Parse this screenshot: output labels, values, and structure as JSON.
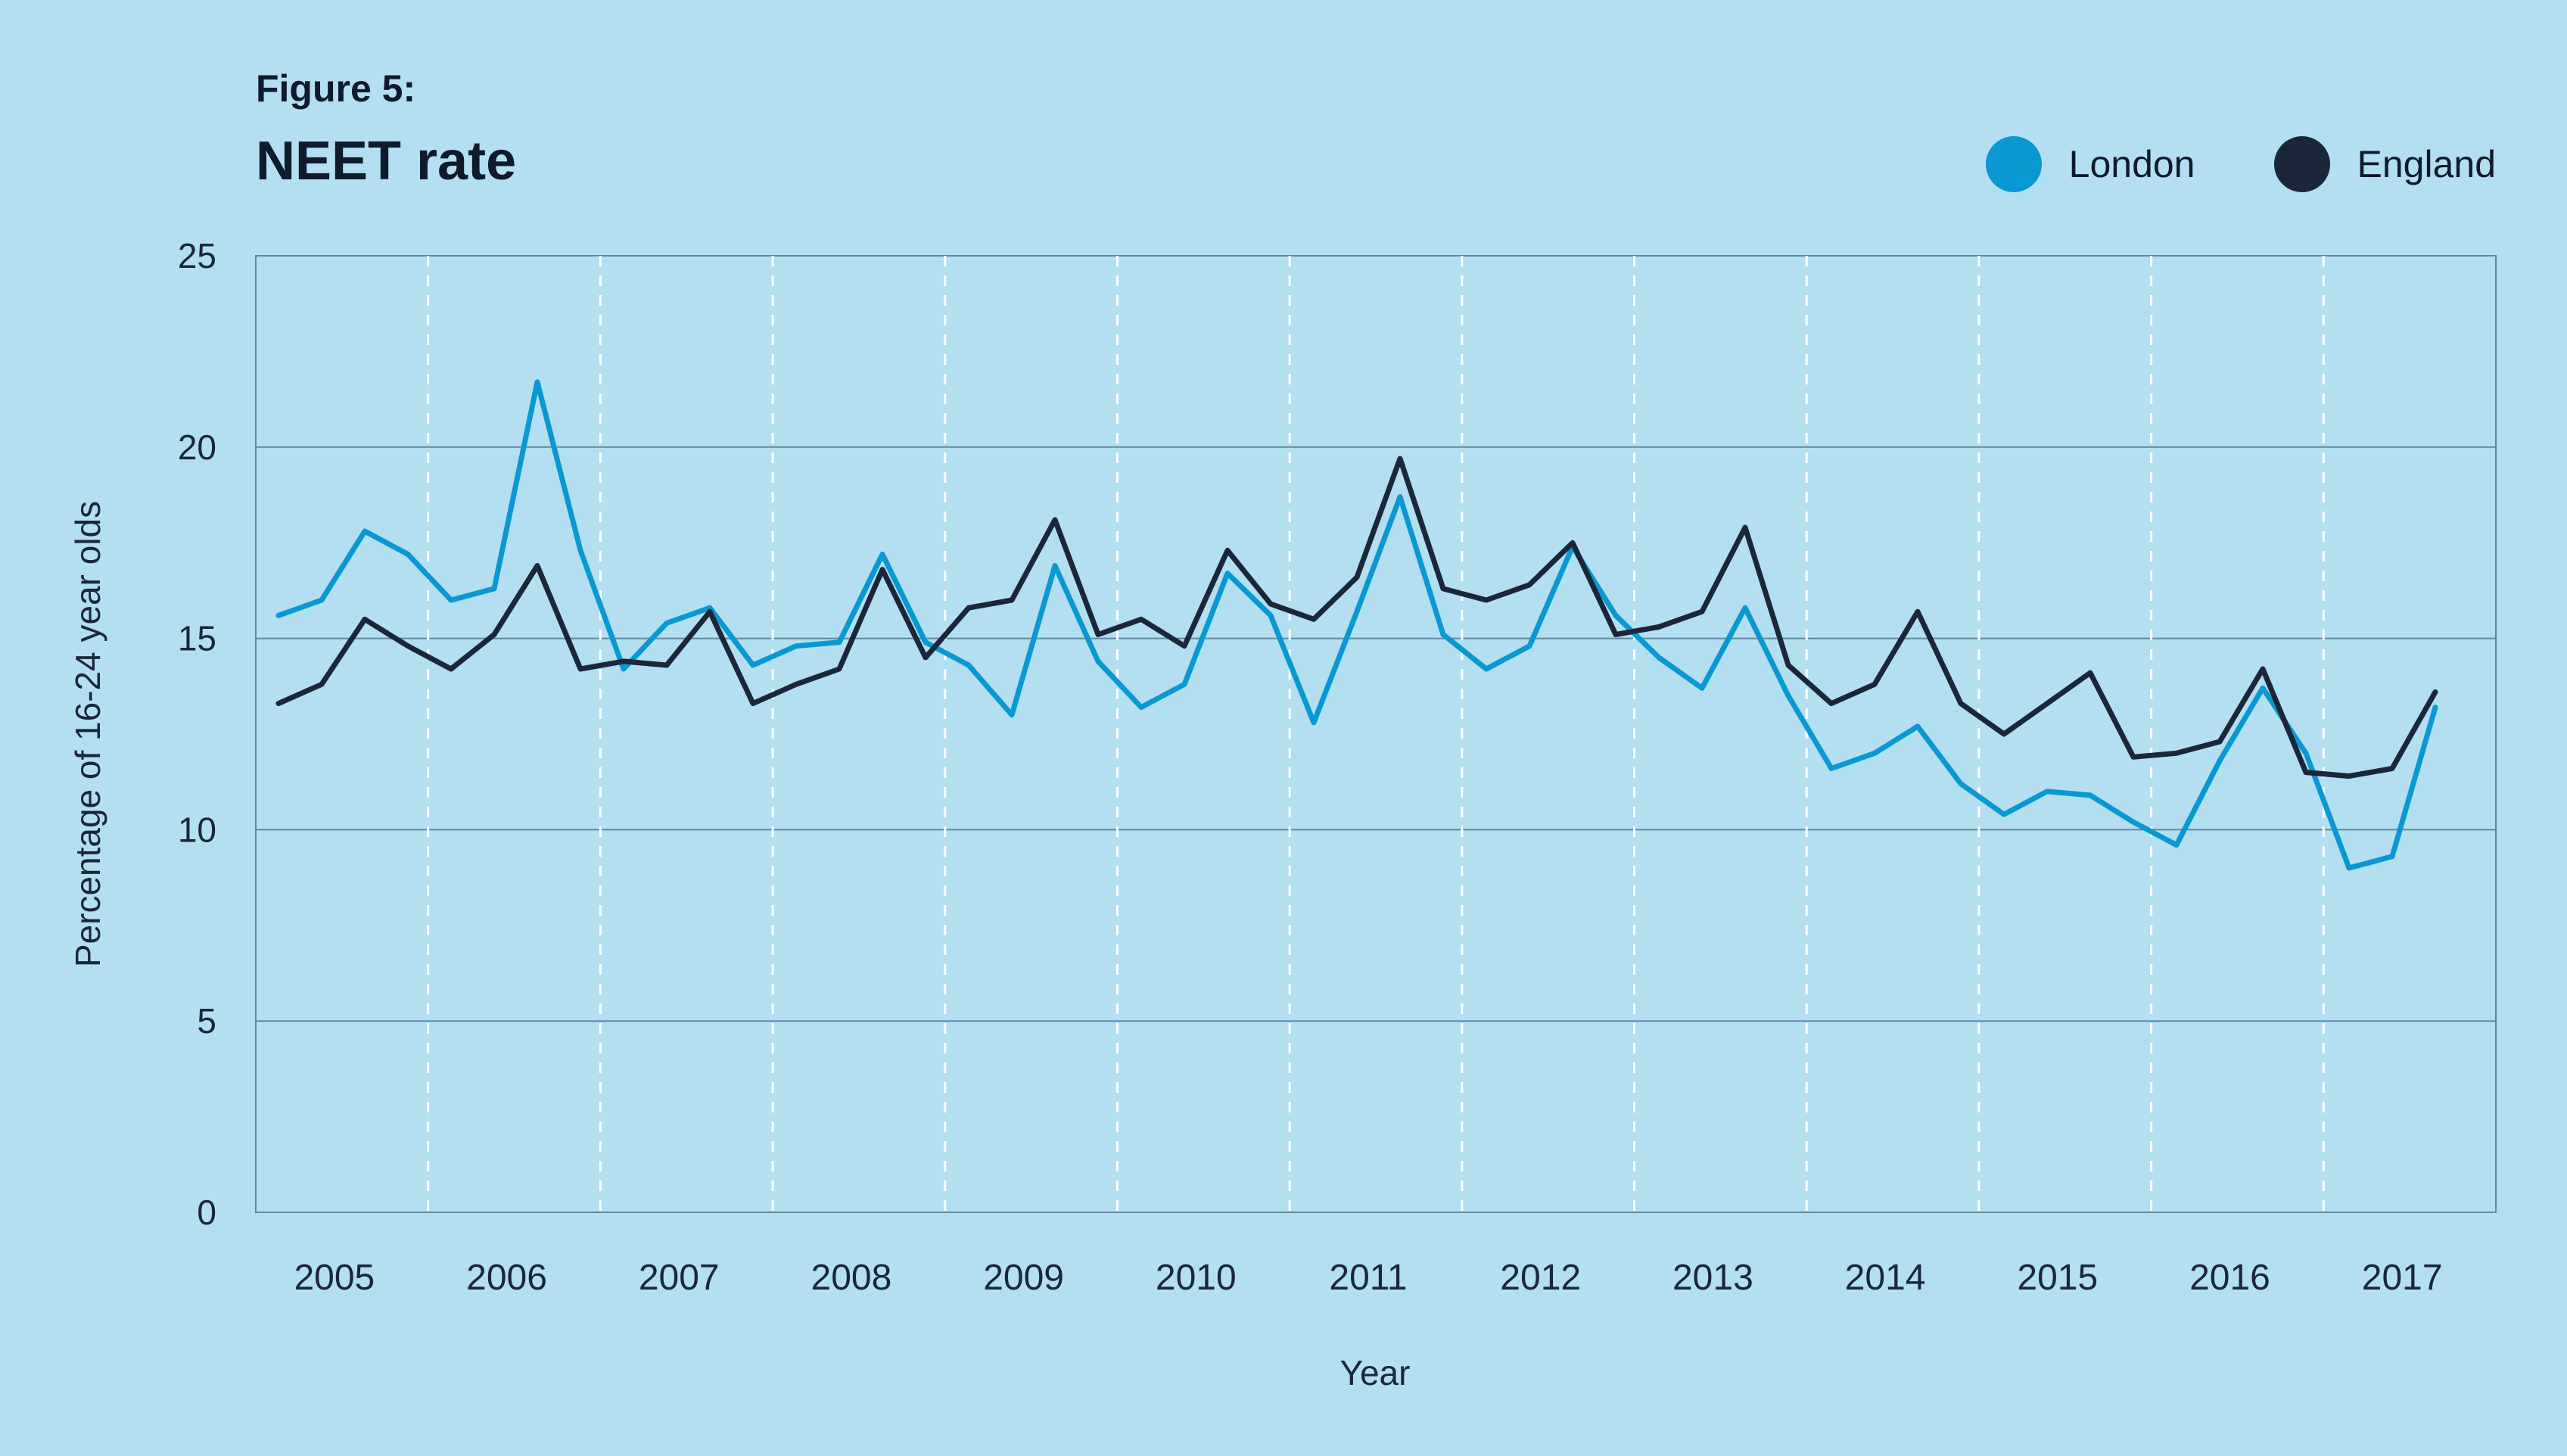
{
  "figure_label": "Figure 5:",
  "colors": {
    "background": "#b3dff1",
    "london": "#0a98d2",
    "england": "#1b2738"
  },
  "chart_data": {
    "type": "line",
    "title": "NEET rate",
    "xlabel": "Year",
    "ylabel": "Percentage of 16-24 year olds",
    "ylim": [
      0,
      25
    ],
    "yticks": [
      0,
      5,
      10,
      15,
      20,
      25
    ],
    "grid": "horizontal solid at y ticks; dashed vertical year dividers",
    "legend_position": "top-right",
    "years": [
      "2005",
      "2006",
      "2007",
      "2008",
      "2009",
      "2010",
      "2011",
      "2012",
      "2013",
      "2014",
      "2015",
      "2016",
      "2017"
    ],
    "x_unit": "quarter",
    "series": [
      {
        "name": "London",
        "color": "#0a98d2",
        "values": [
          15.6,
          16.0,
          17.8,
          17.2,
          16.0,
          16.3,
          21.7,
          17.3,
          14.2,
          15.4,
          15.8,
          14.3,
          14.8,
          14.9,
          17.2,
          14.9,
          14.3,
          13.0,
          16.9,
          14.4,
          13.2,
          13.8,
          16.7,
          15.6,
          12.8,
          15.7,
          18.7,
          15.1,
          14.2,
          14.8,
          17.4,
          15.6,
          14.5,
          13.7,
          15.8,
          13.5,
          11.6,
          12.0,
          12.7,
          11.2,
          10.4,
          11.0,
          10.9,
          10.2,
          9.6,
          11.8,
          13.7,
          12.0,
          9.0,
          9.3,
          13.2
        ]
      },
      {
        "name": "England",
        "color": "#1b2738",
        "values": [
          13.3,
          13.8,
          15.5,
          14.8,
          14.2,
          15.1,
          16.9,
          14.2,
          14.4,
          14.3,
          15.7,
          13.3,
          13.8,
          14.2,
          16.8,
          14.5,
          15.8,
          16.0,
          18.1,
          15.1,
          15.5,
          14.8,
          17.3,
          15.9,
          15.5,
          16.6,
          19.7,
          16.3,
          16.0,
          16.4,
          17.5,
          15.1,
          15.3,
          15.7,
          17.9,
          14.3,
          13.3,
          13.8,
          15.7,
          13.3,
          12.5,
          13.3,
          14.1,
          11.9,
          12.0,
          12.3,
          14.2,
          11.5,
          11.4,
          11.6,
          13.6
        ]
      }
    ]
  }
}
